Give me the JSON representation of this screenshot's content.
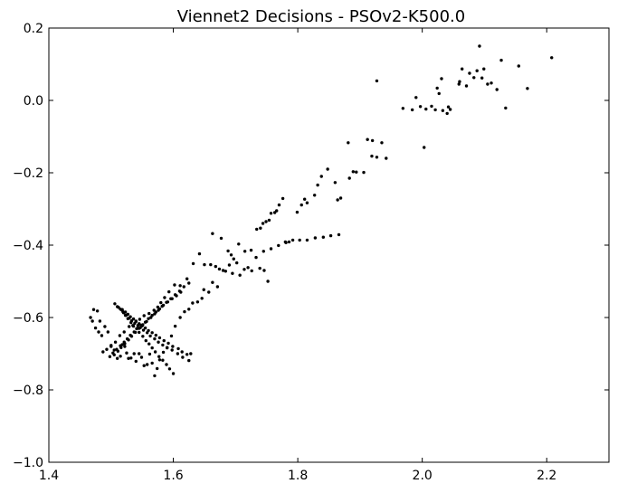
{
  "chart_data": {
    "type": "scatter",
    "title": "Viennet2 Decisions - PSOv2-K500.0",
    "xlabel": "",
    "ylabel": "",
    "xlim": [
      1.4,
      2.3
    ],
    "ylim": [
      -1.0,
      0.2
    ],
    "xticks": [
      1.4,
      1.6,
      1.8,
      2.0,
      2.2
    ],
    "yticks": [
      -1.0,
      -0.8,
      -0.6,
      -0.4,
      -0.2,
      0.0,
      0.2
    ],
    "xtick_labels": [
      "1.4",
      "1.6",
      "1.8",
      "2.0",
      "2.2"
    ],
    "ytick_labels": [
      "−1.0",
      "−0.8",
      "−0.6",
      "−0.4",
      "−0.2",
      "0.0",
      "0.2"
    ],
    "grid": false,
    "marker_color": "#000000",
    "series": [
      {
        "x": [
          2.092,
          2.208,
          2.155,
          2.127,
          2.169,
          2.134,
          2.064,
          2.076,
          2.088,
          2.099,
          2.111,
          2.083,
          2.071,
          2.059,
          2.096,
          2.105,
          2.06,
          2.12,
          1.927,
          2.031,
          2.024,
          2.027,
          2.015,
          2.006,
          2.021,
          1.99,
          1.984,
          1.969,
          2.003,
          2.045,
          2.04,
          2.042,
          2.033,
          1.997,
          1.912,
          1.92,
          1.935,
          1.881,
          1.942,
          1.927,
          1.919,
          1.906,
          1.894,
          1.889,
          1.883,
          1.869,
          1.864,
          1.86,
          1.848,
          1.838,
          1.832,
          1.827,
          1.815,
          1.811,
          1.806,
          1.799,
          1.786,
          1.781,
          1.776,
          1.77,
          1.766,
          1.763,
          1.757,
          1.754,
          1.749,
          1.744,
          1.74,
          1.734,
          1.725,
          1.715,
          1.705,
          1.697,
          1.69,
          1.68,
          1.671,
          1.663,
          1.657,
          1.649,
          1.646,
          1.639,
          1.631,
          1.625,
          1.618,
          1.611,
          1.603,
          1.597,
          1.59,
          1.584,
          1.578,
          1.574,
          1.57,
          1.566,
          1.562,
          1.558,
          1.553,
          1.549,
          1.545,
          1.54,
          1.537,
          1.532,
          1.528,
          1.525,
          1.522,
          1.518,
          1.515,
          1.51,
          1.505,
          1.5,
          1.495,
          1.49,
          1.485,
          1.48,
          1.475,
          1.47,
          1.467,
          1.663,
          1.677,
          1.688,
          1.693,
          1.702,
          1.714,
          1.726,
          1.739,
          1.746,
          1.752,
          1.642,
          1.632,
          1.622,
          1.611,
          1.602,
          1.593,
          1.586,
          1.58,
          1.575,
          1.569,
          1.561,
          1.553,
          1.546,
          1.54,
          1.535,
          1.529,
          1.521,
          1.514,
          1.507,
          1.5,
          1.493,
          1.487,
          1.482,
          1.478,
          1.472,
          1.6,
          1.594,
          1.589,
          1.583,
          1.577,
          1.571,
          1.566,
          1.561,
          1.556,
          1.551,
          1.545,
          1.541,
          1.536,
          1.532,
          1.527,
          1.523,
          1.519,
          1.515,
          1.51,
          1.506,
          1.625,
          1.615,
          1.607,
          1.598,
          1.59,
          1.583,
          1.576,
          1.57,
          1.563,
          1.558,
          1.552,
          1.547,
          1.543,
          1.538,
          1.533,
          1.529,
          1.524,
          1.52,
          1.517,
          1.512,
          1.628,
          1.622,
          1.614,
          1.608,
          1.599,
          1.592,
          1.585,
          1.578,
          1.572,
          1.566,
          1.56,
          1.555,
          1.55,
          1.545,
          1.54,
          1.536,
          1.531,
          1.527,
          1.523,
          1.518,
          1.65,
          1.66,
          1.668,
          1.674,
          1.684,
          1.695,
          1.707,
          1.72,
          1.733,
          1.745,
          1.757,
          1.769,
          1.78,
          1.792,
          1.803,
          1.815,
          1.828,
          1.841,
          1.853,
          1.866,
          1.612,
          1.605,
          1.598,
          1.591,
          1.584,
          1.578,
          1.572,
          1.566,
          1.56,
          1.555,
          1.548,
          1.542,
          1.537,
          1.531,
          1.526,
          1.521,
          1.515,
          1.509,
          1.503,
          1.498,
          1.625,
          1.617,
          1.61,
          1.603,
          1.596,
          1.589,
          1.582,
          1.576,
          1.57,
          1.564,
          1.557,
          1.551,
          1.545,
          1.539,
          1.533,
          1.528,
          1.522,
          1.516,
          1.511,
          1.505
        ],
        "y": [
          0.15,
          0.118,
          0.095,
          0.111,
          0.033,
          -0.021,
          0.087,
          0.075,
          0.082,
          0.087,
          0.048,
          0.063,
          0.04,
          0.045,
          0.062,
          0.045,
          0.052,
          0.03,
          0.054,
          0.06,
          0.034,
          0.019,
          -0.016,
          -0.024,
          -0.026,
          0.008,
          -0.026,
          -0.022,
          -0.13,
          -0.025,
          -0.036,
          -0.018,
          -0.028,
          -0.017,
          -0.108,
          -0.111,
          -0.117,
          -0.117,
          -0.16,
          -0.157,
          -0.154,
          -0.199,
          -0.198,
          -0.197,
          -0.215,
          -0.27,
          -0.275,
          -0.227,
          -0.19,
          -0.21,
          -0.234,
          -0.262,
          -0.283,
          -0.273,
          -0.289,
          -0.309,
          -0.391,
          -0.393,
          -0.271,
          -0.289,
          -0.305,
          -0.31,
          -0.312,
          -0.331,
          -0.335,
          -0.34,
          -0.353,
          -0.356,
          -0.414,
          -0.417,
          -0.397,
          -0.438,
          -0.455,
          -0.47,
          -0.515,
          -0.503,
          -0.53,
          -0.523,
          -0.547,
          -0.557,
          -0.56,
          -0.577,
          -0.584,
          -0.6,
          -0.624,
          -0.651,
          -0.683,
          -0.696,
          -0.717,
          -0.741,
          -0.761,
          -0.726,
          -0.701,
          -0.73,
          -0.733,
          -0.71,
          -0.7,
          -0.721,
          -0.7,
          -0.712,
          -0.713,
          -0.698,
          -0.68,
          -0.675,
          -0.707,
          -0.713,
          -0.69,
          -0.68,
          -0.64,
          -0.625,
          -0.65,
          -0.64,
          -0.629,
          -0.61,
          -0.6,
          -0.368,
          -0.381,
          -0.416,
          -0.427,
          -0.449,
          -0.467,
          -0.471,
          -0.464,
          -0.47,
          -0.5,
          -0.424,
          -0.451,
          -0.493,
          -0.512,
          -0.51,
          -0.529,
          -0.545,
          -0.559,
          -0.571,
          -0.58,
          -0.589,
          -0.595,
          -0.605,
          -0.611,
          -0.622,
          -0.625,
          -0.64,
          -0.65,
          -0.668,
          -0.677,
          -0.688,
          -0.695,
          -0.61,
          -0.582,
          -0.578,
          -0.755,
          -0.742,
          -0.73,
          -0.718,
          -0.708,
          -0.695,
          -0.684,
          -0.673,
          -0.664,
          -0.652,
          -0.641,
          -0.631,
          -0.624,
          -0.614,
          -0.603,
          -0.594,
          -0.584,
          -0.577,
          -0.57,
          -0.562,
          -0.719,
          -0.71,
          -0.7,
          -0.69,
          -0.684,
          -0.676,
          -0.668,
          -0.659,
          -0.651,
          -0.642,
          -0.635,
          -0.628,
          -0.622,
          -0.616,
          -0.609,
          -0.602,
          -0.594,
          -0.587,
          -0.579,
          -0.572,
          -0.7,
          -0.702,
          -0.695,
          -0.686,
          -0.68,
          -0.671,
          -0.664,
          -0.656,
          -0.649,
          -0.642,
          -0.636,
          -0.629,
          -0.623,
          -0.617,
          -0.61,
          -0.604,
          -0.598,
          -0.591,
          -0.585,
          -0.578,
          -0.454,
          -0.454,
          -0.459,
          -0.466,
          -0.472,
          -0.478,
          -0.483,
          -0.462,
          -0.434,
          -0.417,
          -0.41,
          -0.401,
          -0.391,
          -0.386,
          -0.386,
          -0.386,
          -0.38,
          -0.378,
          -0.374,
          -0.371,
          -0.53,
          -0.54,
          -0.548,
          -0.557,
          -0.566,
          -0.576,
          -0.585,
          -0.594,
          -0.603,
          -0.613,
          -0.621,
          -0.63,
          -0.64,
          -0.649,
          -0.659,
          -0.668,
          -0.678,
          -0.688,
          -0.698,
          -0.708,
          -0.505,
          -0.515,
          -0.527,
          -0.537,
          -0.548,
          -0.558,
          -0.569,
          -0.58,
          -0.59,
          -0.6,
          -0.611,
          -0.62,
          -0.63,
          -0.641,
          -0.652,
          -0.662,
          -0.672,
          -0.683,
          -0.693,
          -0.703
        ]
      }
    ]
  }
}
